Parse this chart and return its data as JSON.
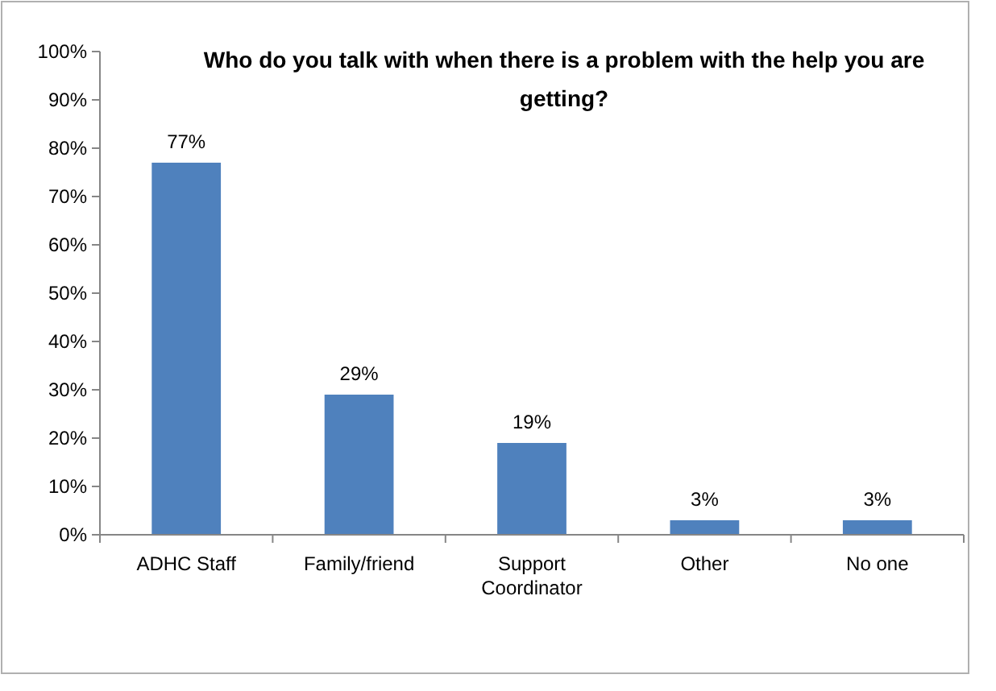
{
  "chart_data": {
    "type": "bar",
    "title": "Who do you talk with when there is a problem with the help you are getting?",
    "categories": [
      "ADHC Staff",
      "Family/friend",
      "Support Coordinator",
      "Other",
      "No one"
    ],
    "values": [
      77,
      29,
      19,
      3,
      3
    ],
    "value_labels": [
      "77%",
      "29%",
      "19%",
      "3%",
      "3%"
    ],
    "color": "#4f81bd",
    "ylim": [
      0,
      100
    ],
    "yticks": [
      {
        "value": 0,
        "label": "0%"
      },
      {
        "value": 10,
        "label": "10%"
      },
      {
        "value": 20,
        "label": "20%"
      },
      {
        "value": 30,
        "label": "30%"
      },
      {
        "value": 40,
        "label": "40%"
      },
      {
        "value": 50,
        "label": "50%"
      },
      {
        "value": 60,
        "label": "60%"
      },
      {
        "value": 70,
        "label": "70%"
      },
      {
        "value": 80,
        "label": "80%"
      },
      {
        "value": 90,
        "label": "90%"
      },
      {
        "value": 100,
        "label": "100%"
      }
    ]
  }
}
